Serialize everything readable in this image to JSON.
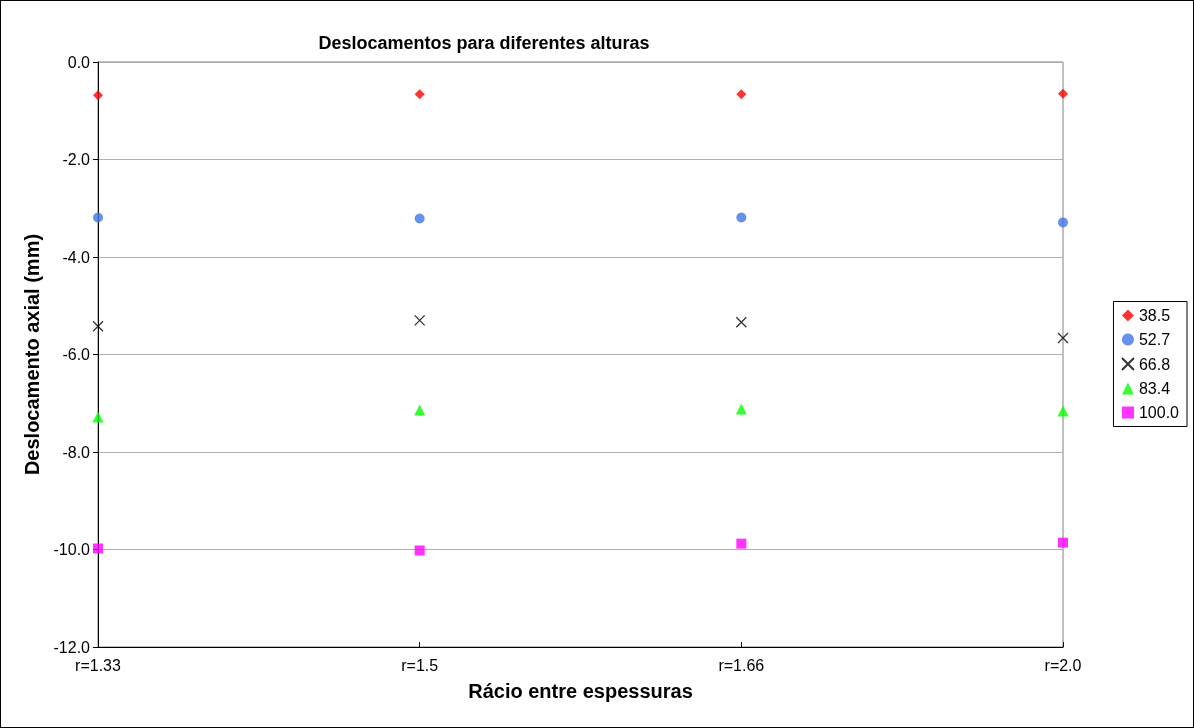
{
  "chart_data": {
    "type": "scatter",
    "title": "Deslocamentos para diferentes alturas",
    "xlabel": "Rácio entre espessuras",
    "ylabel": "Deslocamento axial (mm)",
    "categories": [
      "r=1.33",
      "r=1.5",
      "r=1.66",
      "r=2.0"
    ],
    "series": [
      {
        "name": "38.5",
        "color": "#ff0000",
        "marker": "diamond",
        "values": [
          -0.68,
          -0.66,
          -0.66,
          -0.65
        ]
      },
      {
        "name": "52.7",
        "color": "#3f74e6",
        "marker": "circle",
        "values": [
          -3.19,
          -3.21,
          -3.19,
          -3.29
        ]
      },
      {
        "name": "66.8",
        "color": "#000000",
        "marker": "cross",
        "values": [
          -5.42,
          -5.3,
          -5.34,
          -5.66
        ]
      },
      {
        "name": "83.4",
        "color": "#00ff00",
        "marker": "triangle",
        "values": [
          -7.28,
          -7.14,
          -7.12,
          -7.16
        ]
      },
      {
        "name": "100.0",
        "color": "#ff00ff",
        "marker": "square",
        "values": [
          -9.98,
          -10.02,
          -9.88,
          -9.86
        ]
      }
    ],
    "ylim": [
      -12,
      0
    ],
    "yticks": [
      {
        "value": -12,
        "label": "-12.0"
      },
      {
        "value": -10,
        "label": "-10.0"
      },
      {
        "value": -8,
        "label": "-8.0"
      },
      {
        "value": -6,
        "label": "-6.0"
      },
      {
        "value": -4,
        "label": "-4.0"
      },
      {
        "value": -2,
        "label": "-2.0"
      },
      {
        "value": 0,
        "label": "0.0"
      }
    ],
    "grid": "y",
    "legend": "right"
  }
}
